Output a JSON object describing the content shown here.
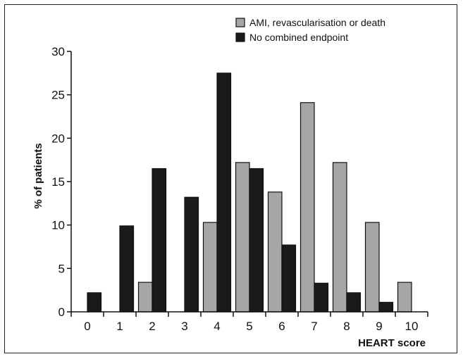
{
  "chart_data": {
    "type": "bar",
    "title": "",
    "xlabel": "HEART score",
    "ylabel": "% of patients",
    "ylim": [
      0,
      30
    ],
    "yticks": [
      0,
      5,
      10,
      15,
      20,
      25,
      30
    ],
    "categories": [
      "0",
      "1",
      "2",
      "3",
      "4",
      "5",
      "6",
      "7",
      "8",
      "9",
      "10"
    ],
    "grid": false,
    "legend_position": "top-right",
    "series": [
      {
        "name": "AMI, revascularisation or death",
        "color": "#a6a6a6",
        "values": [
          0,
          0,
          3.4,
          0,
          10.3,
          17.2,
          13.8,
          24.1,
          17.2,
          10.3,
          3.4
        ]
      },
      {
        "name": "No combined endpoint",
        "color": "#1a1a1a",
        "values": [
          2.2,
          9.9,
          16.5,
          13.2,
          27.5,
          16.5,
          7.7,
          3.3,
          2.2,
          1.1,
          0
        ]
      }
    ]
  }
}
